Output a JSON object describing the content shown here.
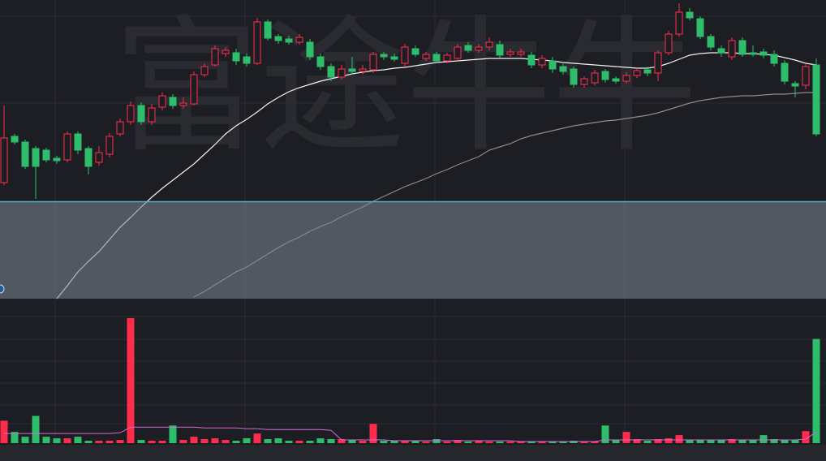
{
  "chart_data": [
    {
      "type": "candlestick",
      "watermark": "富途牛牛",
      "up_color": "#ff2d4b",
      "down_color": "#2ebd6b",
      "ylim": [
        32,
        400
      ],
      "open": [
        175,
        232,
        225,
        217,
        215,
        205,
        203,
        235,
        217,
        200,
        210,
        235,
        250,
        270,
        250,
        268,
        280,
        270,
        272,
        308,
        320,
        334,
        335,
        330,
        322,
        373,
        355,
        352,
        348,
        348,
        330,
        318,
        305,
        315,
        312,
        314,
        333,
        330,
        322,
        340,
        328,
        333,
        325,
        328,
        344,
        338,
        342,
        345,
        333,
        333,
        332,
        320,
        325,
        318,
        315,
        296,
        298,
        312,
        303,
        300,
        307,
        314,
        310,
        335,
        358,
        385,
        377,
        355,
        340,
        330,
        350,
        335,
        336,
        333,
        322,
        297,
        295,
        320
      ],
      "high": [
        270,
        235,
        228,
        220,
        218,
        208,
        238,
        238,
        220,
        220,
        236,
        254,
        275,
        274,
        272,
        286,
        284,
        280,
        312,
        322,
        344,
        342,
        340,
        334,
        378,
        376,
        358,
        356,
        358,
        352,
        334,
        322,
        320,
        330,
        320,
        336,
        336,
        334,
        346,
        344,
        336,
        336,
        335,
        346,
        348,
        346,
        354,
        350,
        340,
        340,
        336,
        332,
        330,
        322,
        318,
        306,
        314,
        315,
        306,
        311,
        316,
        318,
        338,
        362,
        396,
        390,
        380,
        358,
        344,
        354,
        354,
        344,
        340,
        338,
        326,
        300,
        322,
        328
      ],
      "low": [
        172,
        222,
        192,
        155,
        200,
        198,
        200,
        210,
        185,
        196,
        206,
        232,
        246,
        246,
        246,
        264,
        266,
        266,
        270,
        305,
        318,
        330,
        320,
        318,
        320,
        350,
        346,
        345,
        345,
        326,
        314,
        300,
        302,
        308,
        308,
        310,
        326,
        324,
        318,
        330,
        325,
        322,
        322,
        325,
        335,
        335,
        338,
        328,
        330,
        330,
        316,
        316,
        310,
        308,
        292,
        292,
        295,
        298,
        297,
        297,
        304,
        306,
        300,
        332,
        355,
        375,
        352,
        338,
        330,
        326,
        330,
        330,
        328,
        318,
        296,
        280,
        290,
        232
      ],
      "close": [
        230,
        225,
        195,
        195,
        203,
        202,
        235,
        215,
        195,
        212,
        232,
        250,
        270,
        250,
        267,
        282,
        270,
        273,
        308,
        318,
        340,
        338,
        325,
        322,
        373,
        353,
        350,
        348,
        354,
        330,
        318,
        305,
        315,
        312,
        315,
        333,
        330,
        327,
        342,
        333,
        333,
        325,
        332,
        342,
        338,
        342,
        348,
        332,
        336,
        336,
        320,
        328,
        315,
        312,
        296,
        303,
        310,
        302,
        300,
        307,
        313,
        310,
        335,
        358,
        385,
        378,
        355,
        342,
        335,
        350,
        333,
        333,
        332,
        322,
        300,
        294,
        318,
        235
      ],
      "lines": [
        {
          "color": "#f2f2f2",
          "values": [
            null,
            null,
            null,
            null,
            null,
            32,
            48,
            65,
            78,
            90,
            105,
            120,
            132,
            145,
            157,
            168,
            178,
            188,
            198,
            210,
            222,
            235,
            245,
            253,
            262,
            272,
            280,
            287,
            292,
            296,
            300,
            303,
            306,
            309,
            311,
            313,
            314,
            316,
            317,
            319,
            321,
            323,
            324,
            325,
            326,
            327,
            328,
            328,
            328,
            328,
            327,
            326,
            325,
            323,
            322,
            321,
            320,
            319,
            318,
            317,
            316,
            316,
            318,
            322,
            327,
            332,
            334,
            335,
            335,
            335,
            334,
            334,
            333,
            332,
            329,
            326,
            322,
            320
          ]
        },
        {
          "color": "#8c8c8c",
          "values": [
            null,
            null,
            null,
            null,
            null,
            null,
            null,
            null,
            null,
            null,
            null,
            null,
            null,
            null,
            null,
            null,
            null,
            null,
            34,
            41,
            49,
            57,
            65,
            71,
            79,
            87,
            95,
            102,
            108,
            115,
            121,
            126,
            133,
            139,
            145,
            152,
            158,
            164,
            170,
            175,
            180,
            186,
            191,
            197,
            202,
            207,
            215,
            219,
            223,
            229,
            233,
            236,
            239,
            242,
            245,
            247,
            249,
            251,
            252,
            254,
            256,
            258,
            261,
            265,
            269,
            273,
            276,
            278,
            280,
            281,
            282,
            282,
            283,
            284,
            284,
            285,
            286,
            286
          ]
        }
      ]
    },
    {
      "type": "bar",
      "ylim": [
        0,
        160
      ],
      "values": [
        28,
        14,
        8,
        34,
        8,
        6,
        6,
        8,
        3,
        3,
        3,
        4,
        156,
        4,
        3,
        3,
        22,
        4,
        8,
        5,
        6,
        4,
        3,
        6,
        12,
        5,
        6,
        3,
        3,
        3,
        6,
        5,
        5,
        4,
        3,
        24,
        3,
        3,
        3,
        3,
        2,
        5,
        2,
        4,
        2,
        3,
        2,
        2,
        2,
        2,
        2,
        2,
        2,
        2,
        3,
        2,
        2,
        22,
        4,
        14,
        5,
        3,
        5,
        6,
        10,
        4,
        4,
        4,
        4,
        5,
        4,
        4,
        10,
        5,
        4,
        4,
        15,
        130
      ],
      "line": {
        "color": "#d46bd8",
        "values": [
          12,
          12,
          12,
          12,
          12,
          12,
          12,
          12,
          12,
          12,
          12,
          13,
          20,
          20,
          20,
          20,
          20,
          20,
          20,
          19,
          19,
          19,
          19,
          18,
          18,
          17,
          17,
          17,
          17,
          17,
          17,
          16,
          4,
          4,
          4,
          4,
          4,
          3,
          3,
          3,
          3,
          3,
          3,
          3,
          3,
          3,
          3,
          3,
          3,
          2,
          2,
          2,
          2,
          2,
          2,
          2,
          2,
          4,
          4,
          4,
          4,
          4,
          4,
          4,
          4,
          4,
          4,
          4,
          4,
          4,
          4,
          4,
          4,
          4,
          4,
          4,
          5,
          14
        ]
      }
    }
  ]
}
